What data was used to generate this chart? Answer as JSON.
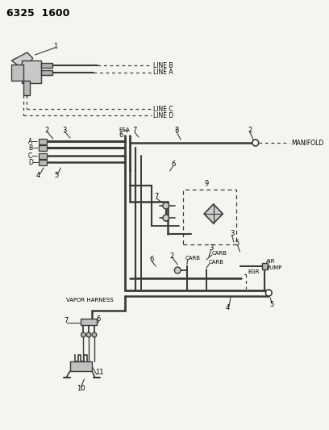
{
  "title": "6325  1600",
  "bg": "#f5f5f0",
  "lc": "#3a3a3a",
  "dc": "#3a3a3a",
  "labels": {
    "line_b": "LINE B",
    "line_a": "LINE A",
    "line_c": "LINE C",
    "line_d": "LINE D",
    "esa": "ESA",
    "manifold": "MANIFOLD",
    "carb": "CARB",
    "egr": "EGR",
    "air_pump": "AIR\nPUMP",
    "vapor": "VAPOR HARNESS"
  }
}
